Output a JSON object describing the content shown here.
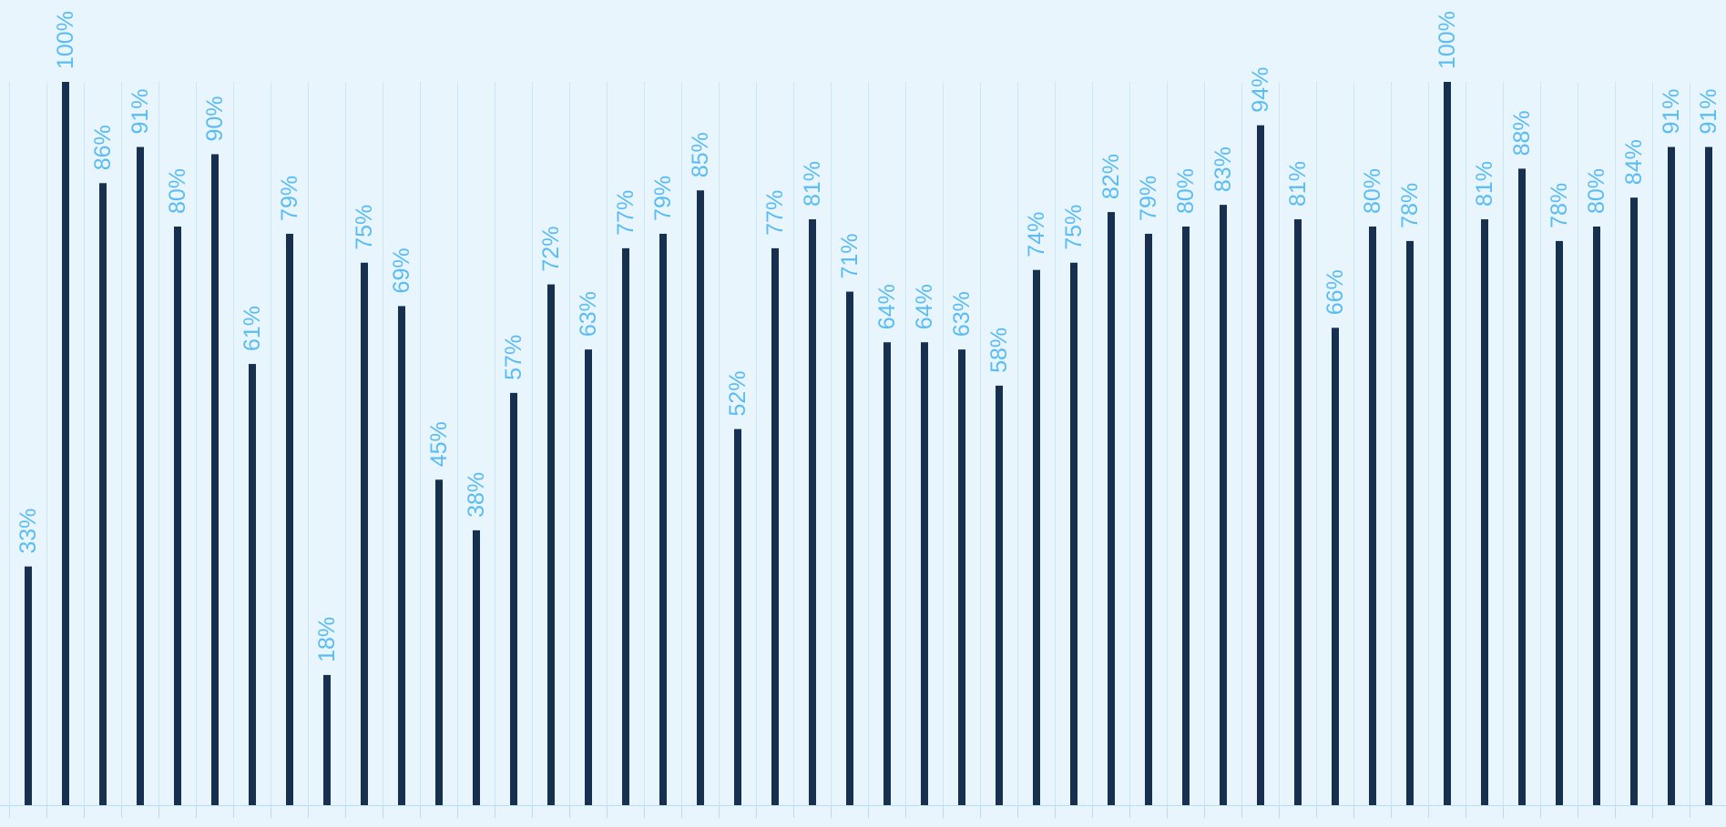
{
  "colors": {
    "background": "#e8f5fd",
    "bar": "#18304f",
    "label": "#5bbcf2",
    "grid": "#cbe6f7",
    "axis": "#b9dcf2"
  },
  "chart_data": {
    "type": "bar",
    "title": "",
    "xlabel": "",
    "ylabel": "",
    "ylim": [
      0,
      100
    ],
    "grid": true,
    "legend": "none",
    "values": [
      33,
      100,
      86,
      91,
      80,
      90,
      61,
      79,
      18,
      75,
      69,
      45,
      38,
      57,
      72,
      63,
      77,
      79,
      85,
      52,
      77,
      81,
      71,
      64,
      64,
      63,
      58,
      74,
      75,
      82,
      79,
      80,
      83,
      94,
      81,
      66,
      80,
      78,
      100,
      81,
      88,
      78,
      80,
      84,
      91,
      91
    ],
    "labels": [
      "33%",
      "100%",
      "86%",
      "91%",
      "80%",
      "90%",
      "61%",
      "79%",
      "18%",
      "75%",
      "69%",
      "45%",
      "38%",
      "57%",
      "72%",
      "63%",
      "77%",
      "79%",
      "85%",
      "52%",
      "77%",
      "81%",
      "71%",
      "64%",
      "64%",
      "63%",
      "58%",
      "74%",
      "75%",
      "82%",
      "79%",
      "80%",
      "83%",
      "94%",
      "81%",
      "66%",
      "80%",
      "78%",
      "100%",
      "81%",
      "88%",
      "78%",
      "80%",
      "84%",
      "91%",
      "91%"
    ]
  }
}
